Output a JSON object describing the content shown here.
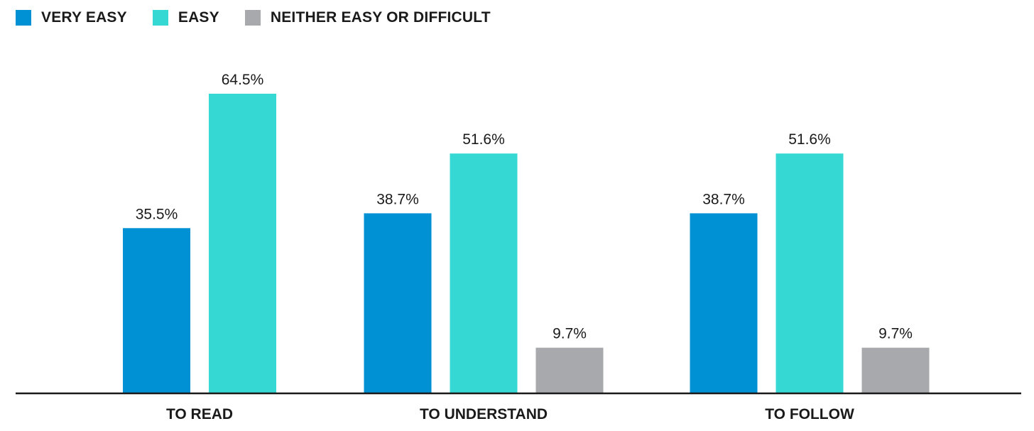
{
  "chart_data": {
    "type": "bar",
    "categories": [
      "TO READ",
      "TO UNDERSTAND",
      "TO FOLLOW"
    ],
    "series": [
      {
        "name": "VERY EASY",
        "color": "#0091d4",
        "values": [
          35.5,
          38.7,
          38.7
        ],
        "labels": [
          "35.5%",
          "38.7%",
          "38.7%"
        ]
      },
      {
        "name": "EASY",
        "color": "#36d8d4",
        "values": [
          64.5,
          51.6,
          51.6
        ],
        "labels": [
          "64.5%",
          "51.6%",
          "51.6%"
        ]
      },
      {
        "name": "NEITHER EASY OR DIFFICULT",
        "color": "#a7a9ac",
        "values": [
          null,
          9.7,
          9.7
        ],
        "labels": [
          null,
          "9.7%",
          "9.7%"
        ]
      }
    ],
    "ylim": [
      0,
      70
    ],
    "grid": false,
    "legend": "top-left",
    "axis_color": "#1a1a1a"
  }
}
